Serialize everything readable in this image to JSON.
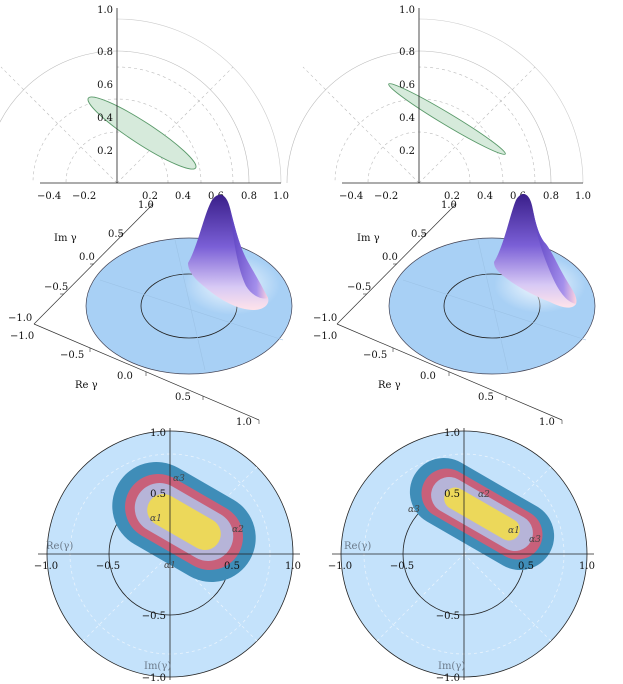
{
  "chart_data": [
    {
      "type": "scatter",
      "panel": "top-left",
      "x_ticks": [
        "−0.4",
        "−0.2",
        "0.2",
        "0.4",
        "0.6",
        "0.8",
        "1.0"
      ],
      "y_ticks": [
        "0.2",
        "0.4",
        "0.6",
        "0.8",
        "1.0"
      ],
      "xlim": [
        -0.45,
        1.0
      ],
      "ylim": [
        0,
        1.0
      ],
      "region": {
        "center": [
          0.15,
          0.3
        ],
        "semi_axes": [
          0.39,
          0.065
        ],
        "angle_deg": -33
      },
      "colors": {
        "fill": "#d6eadb",
        "stroke": "#5a9a6a"
      }
    },
    {
      "type": "scatter",
      "panel": "top-right",
      "x_ticks": [
        "−0.4",
        "−0.2",
        "0.2",
        "0.4",
        "0.6",
        "0.8",
        "1.0"
      ],
      "y_ticks": [
        "0.2",
        "0.4",
        "0.6",
        "0.8",
        "1.0"
      ],
      "xlim": [
        -0.45,
        1.0
      ],
      "ylim": [
        0,
        1.0
      ],
      "region": {
        "center": [
          0.19,
          0.3
        ],
        "semi_axes": [
          0.42,
          0.035
        ],
        "angle_deg": -31
      },
      "colors": {
        "fill": "#d6eadb",
        "stroke": "#5a9a6a"
      }
    },
    {
      "type": "heatmap",
      "panel": "middle-left",
      "axis_labels": {
        "im": "Im γ",
        "re": "Re γ"
      },
      "im_ticks": [
        "1.0",
        "0.5",
        "0.0",
        "−0.5",
        "−1.0"
      ],
      "re_ticks": [
        "−1.0",
        "−0.5",
        "0.0",
        "0.5",
        "1.0"
      ],
      "colors": {
        "disk": "#a8d0f5",
        "peak_top": "#3a1f8a",
        "peak_mid": "#8a6fe0",
        "peak_base": "#ffd6e0"
      }
    },
    {
      "type": "heatmap",
      "panel": "middle-right",
      "axis_labels": {
        "im": "Im γ",
        "re": "Re γ"
      },
      "im_ticks": [
        "1.0",
        "0.5",
        "0.0",
        "−0.5",
        "−1.0"
      ],
      "re_ticks": [
        "−1.0",
        "−0.5",
        "0.0",
        "0.5",
        "1.0"
      ],
      "colors": {
        "disk": "#a8d0f5",
        "peak_top": "#3a1f8a",
        "peak_mid": "#8a6fe0",
        "peak_base": "#ffd6e0"
      }
    },
    {
      "type": "heatmap",
      "panel": "bottom-left",
      "axis_labels": {
        "re": "Re(γ)",
        "im": "Im(γ)"
      },
      "x_ticks": [
        "−1.0",
        "−0.5",
        "0.5",
        "1.0"
      ],
      "y_ticks": [
        "1.0",
        "0.5",
        "−0.5",
        "−1.0"
      ],
      "contour_labels": [
        "α3",
        "α1",
        "α2",
        "α1"
      ],
      "colors": {
        "disk": "#c4e2fb",
        "outer": "#3f8db8",
        "band2": "#c8607a",
        "band3": "#b6b4d8",
        "core": "#ecd85a"
      }
    },
    {
      "type": "heatmap",
      "panel": "bottom-right",
      "axis_labels": {
        "re": "Re(γ)",
        "im": "Im(γ)"
      },
      "x_ticks": [
        "−1.0",
        "−0.5",
        "0.5",
        "1.0"
      ],
      "y_ticks": [
        "1.0",
        "0.5",
        "−0.5",
        "−1.0"
      ],
      "contour_labels": [
        "α3",
        "α3",
        "α2",
        "α1"
      ],
      "colors": {
        "disk": "#c4e2fb",
        "outer": "#3f8db8",
        "band2": "#c8607a",
        "band3": "#b6b4d8",
        "core": "#ecd85a"
      }
    }
  ]
}
